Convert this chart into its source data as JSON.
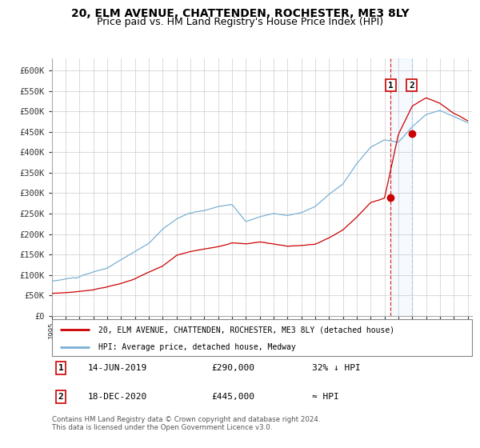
{
  "title": "20, ELM AVENUE, CHATTENDEN, ROCHESTER, ME3 8LY",
  "subtitle": "Price paid vs. HM Land Registry's House Price Index (HPI)",
  "title_fontsize": 10,
  "subtitle_fontsize": 9,
  "ylabel_ticks": [
    "£0",
    "£50K",
    "£100K",
    "£150K",
    "£200K",
    "£250K",
    "£300K",
    "£350K",
    "£400K",
    "£450K",
    "£500K",
    "£550K",
    "£600K"
  ],
  "ytick_values": [
    0,
    50000,
    100000,
    150000,
    200000,
    250000,
    300000,
    350000,
    400000,
    450000,
    500000,
    550000,
    600000
  ],
  "ylim": [
    0,
    630000
  ],
  "legend_red_label": "20, ELM AVENUE, CHATTENDEN, ROCHESTER, ME3 8LY (detached house)",
  "legend_blue_label": "HPI: Average price, detached house, Medway",
  "annotation1_date": "14-JUN-2019",
  "annotation1_price": "£290,000",
  "annotation1_hpi": "32% ↓ HPI",
  "annotation2_date": "18-DEC-2020",
  "annotation2_price": "£445,000",
  "annotation2_hpi": "≈ HPI",
  "footer": "Contains HM Land Registry data © Crown copyright and database right 2024.\nThis data is licensed under the Open Government Licence v3.0.",
  "red_color": "#cc0000",
  "blue_color": "#7ab0d4",
  "marker_color": "#cc0000",
  "vline1_x": 2019.45,
  "vline2_x": 2020.96,
  "point1_x": 2019.45,
  "point1_y": 290000,
  "point2_x": 2020.96,
  "point2_y": 445000,
  "xlim_left": 1995,
  "xlim_right": 2025.3
}
